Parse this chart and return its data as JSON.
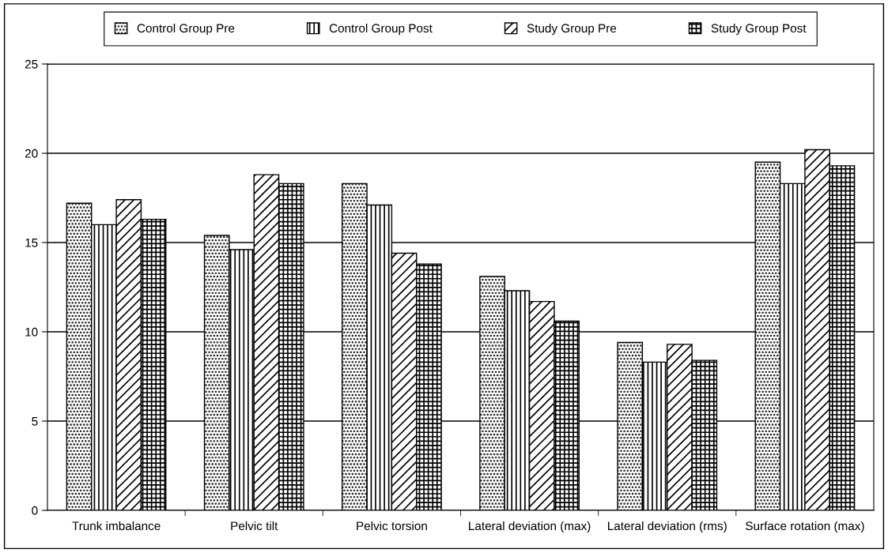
{
  "chart_data": {
    "type": "bar",
    "categories": [
      "Trunk imbalance",
      "Pelvic tilt",
      "Pelvic torsion",
      "Lateral deviation (max)",
      "Lateral deviation (rms)",
      "Surface rotation (max)"
    ],
    "series": [
      {
        "name": "Control Group Pre",
        "color": "#000000",
        "values": [
          17.2,
          15.4,
          18.3,
          13.1,
          9.4,
          19.5
        ]
      },
      {
        "name": "Control Group Post",
        "color": "#000000",
        "values": [
          16.0,
          14.6,
          17.1,
          12.3,
          8.3,
          18.3
        ]
      },
      {
        "name": "Study Group Pre",
        "color": "#000000",
        "values": [
          17.4,
          18.8,
          14.4,
          11.7,
          9.3,
          20.2
        ]
      },
      {
        "name": "Study Group Post",
        "color": "#000000",
        "values": [
          16.3,
          18.3,
          13.8,
          10.6,
          8.4,
          19.3
        ]
      }
    ],
    "ylim": [
      0,
      25
    ],
    "yticks": [
      0,
      5,
      10,
      15,
      20,
      25
    ],
    "grid": "y",
    "legend": "top"
  }
}
